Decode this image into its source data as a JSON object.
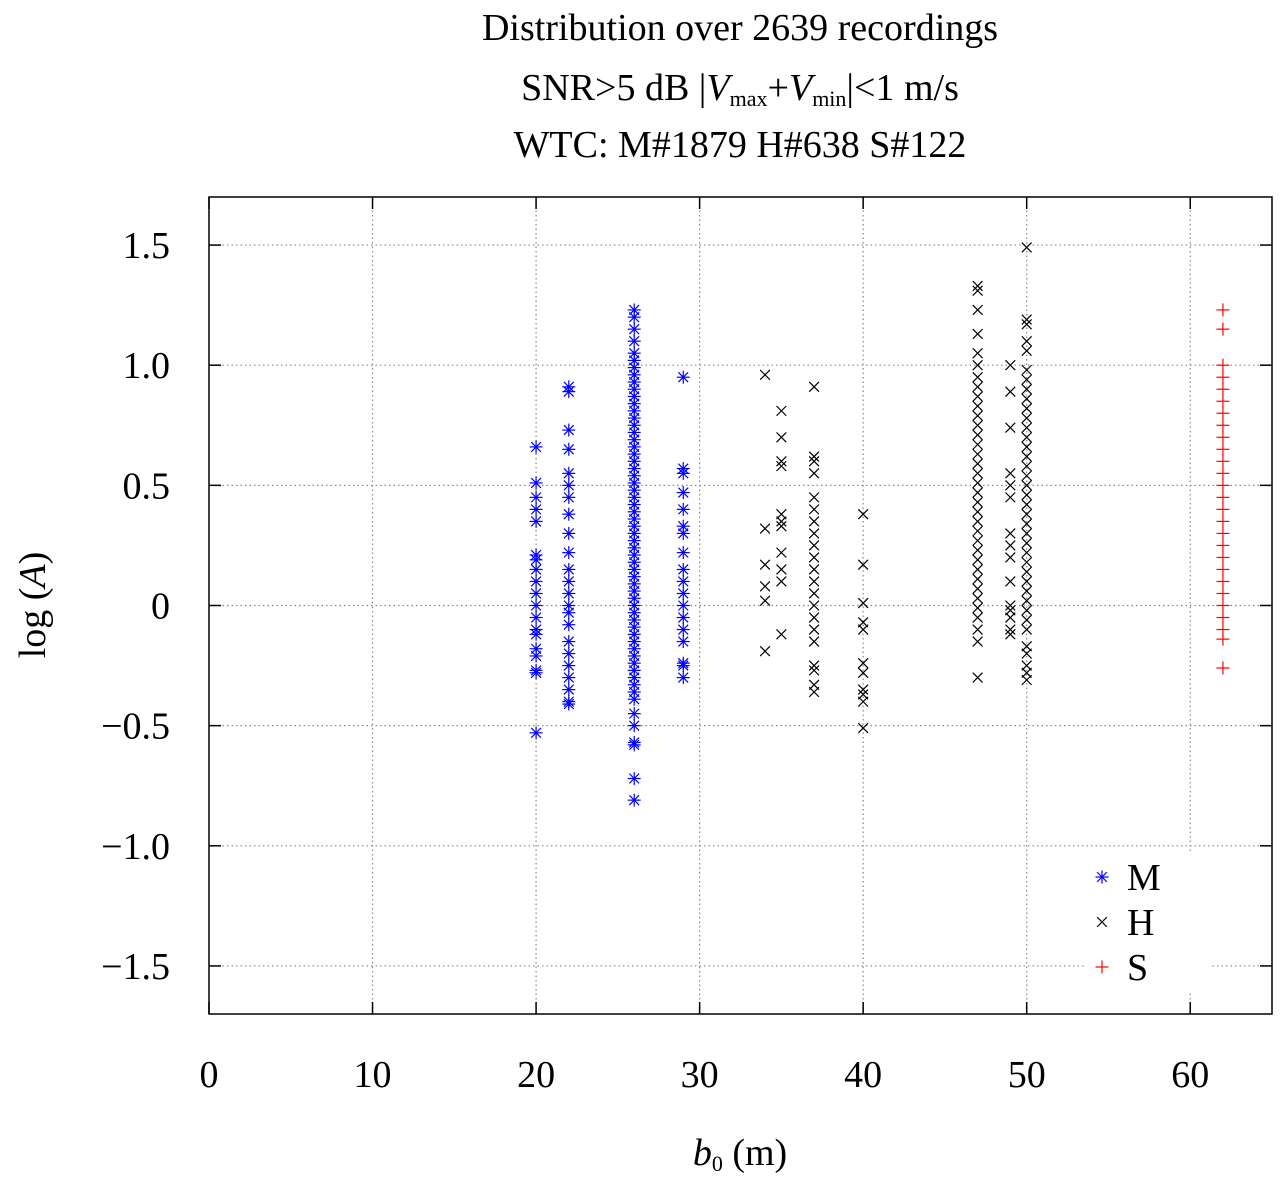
{
  "chart_data": {
    "type": "scatter",
    "title": {
      "line1": "Distribution over 2639 recordings",
      "line2_prefix": "SNR>5 dB  |",
      "line2_v": "V",
      "line2_max": "max",
      "line2_plus": "+",
      "line2_min": "min",
      "line2_suffix": "|<1 m/s",
      "line3": "WTC: M#1879  H#638  S#122"
    },
    "xlabel": {
      "var": "b",
      "sub": "0",
      "unit": " (m)"
    },
    "ylabel": {
      "fn": "log (",
      "var": "A",
      "close": ")"
    },
    "xlim": [
      0,
      65
    ],
    "ylim": [
      -1.7,
      1.7
    ],
    "xticks": [
      0,
      10,
      20,
      30,
      40,
      50,
      60
    ],
    "yticks": [
      -1.5,
      -1.0,
      -0.5,
      0,
      0.5,
      1.0,
      1.5
    ],
    "ytick_labels": [
      "−1.5",
      "−1.0",
      "−0.5",
      "0",
      "0.5",
      "1.0",
      "1.5"
    ],
    "grid": true,
    "legend_position": "bottom-right",
    "series": [
      {
        "name": "M",
        "marker": "star",
        "color": "#0000ff",
        "columns": [
          {
            "x": 20,
            "y": [
              0.66,
              0.51,
              0.45,
              0.4,
              0.35,
              0.21,
              0.19,
              0.15,
              0.1,
              0.05,
              0.0,
              -0.05,
              -0.1,
              -0.12,
              -0.18,
              -0.21,
              -0.27,
              -0.28,
              -0.53
            ]
          },
          {
            "x": 22,
            "y": [
              0.91,
              0.89,
              0.73,
              0.65,
              0.55,
              0.5,
              0.45,
              0.38,
              0.3,
              0.22,
              0.15,
              0.1,
              0.05,
              0.0,
              -0.03,
              -0.08,
              -0.15,
              -0.2,
              -0.25,
              -0.3,
              -0.35,
              -0.4,
              -0.41
            ]
          },
          {
            "x": 26,
            "y": [
              1.23,
              1.2,
              1.15,
              1.1,
              1.05,
              1.02,
              0.99,
              0.96,
              0.93,
              0.9,
              0.87,
              0.84,
              0.81,
              0.78,
              0.75,
              0.72,
              0.69,
              0.66,
              0.63,
              0.6,
              0.57,
              0.54,
              0.51,
              0.48,
              0.45,
              0.42,
              0.39,
              0.36,
              0.33,
              0.3,
              0.27,
              0.24,
              0.21,
              0.18,
              0.15,
              0.12,
              0.09,
              0.06,
              0.03,
              0.0,
              -0.03,
              -0.06,
              -0.09,
              -0.12,
              -0.15,
              -0.18,
              -0.21,
              -0.24,
              -0.27,
              -0.3,
              -0.33,
              -0.36,
              -0.39,
              -0.45,
              -0.5,
              -0.57,
              -0.58,
              -0.72,
              -0.81
            ]
          },
          {
            "x": 29,
            "y": [
              0.95,
              0.57,
              0.55,
              0.47,
              0.4,
              0.33,
              0.3,
              0.22,
              0.15,
              0.1,
              0.05,
              0.0,
              -0.05,
              -0.1,
              -0.15,
              -0.24,
              -0.25,
              -0.3
            ]
          }
        ]
      },
      {
        "name": "H",
        "marker": "cross",
        "color": "#000000",
        "columns": [
          {
            "x": 34,
            "y": [
              0.96,
              0.32,
              0.17,
              0.08,
              0.02,
              -0.19
            ]
          },
          {
            "x": 35,
            "y": [
              0.81,
              0.7,
              0.6,
              0.58,
              0.38,
              0.35,
              0.33,
              0.22,
              0.15,
              0.1,
              -0.12
            ]
          },
          {
            "x": 37,
            "y": [
              0.91,
              0.62,
              0.6,
              0.55,
              0.45,
              0.4,
              0.35,
              0.3,
              0.25,
              0.2,
              0.15,
              0.1,
              0.05,
              0.0,
              -0.05,
              -0.1,
              -0.15,
              -0.25,
              -0.27,
              -0.33,
              -0.36
            ]
          },
          {
            "x": 40,
            "y": [
              0.38,
              0.17,
              0.01,
              -0.07,
              -0.1,
              -0.24,
              -0.28,
              -0.35,
              -0.37,
              -0.4,
              -0.51
            ]
          },
          {
            "x": 47,
            "y": [
              1.33,
              1.31,
              1.23,
              1.13,
              1.05,
              1.0,
              0.95,
              0.91,
              0.87,
              0.83,
              0.79,
              0.75,
              0.71,
              0.67,
              0.63,
              0.59,
              0.55,
              0.51,
              0.47,
              0.43,
              0.39,
              0.35,
              0.31,
              0.27,
              0.23,
              0.19,
              0.15,
              0.11,
              0.07,
              0.03,
              -0.01,
              -0.05,
              -0.1,
              -0.15,
              -0.3
            ]
          },
          {
            "x": 49,
            "y": [
              1.0,
              0.89,
              0.74,
              0.55,
              0.5,
              0.45,
              0.3,
              0.25,
              0.2,
              0.1,
              0.0,
              -0.02,
              -0.05,
              -0.1,
              -0.12
            ]
          },
          {
            "x": 50,
            "y": [
              1.49,
              1.19,
              1.17,
              1.1,
              1.06,
              0.98,
              0.94,
              0.9,
              0.86,
              0.82,
              0.78,
              0.74,
              0.7,
              0.66,
              0.62,
              0.58,
              0.54,
              0.5,
              0.46,
              0.42,
              0.38,
              0.34,
              0.3,
              0.26,
              0.22,
              0.18,
              0.14,
              0.1,
              0.06,
              0.02,
              -0.02,
              -0.06,
              -0.1,
              -0.17,
              -0.2,
              -0.25,
              -0.28,
              -0.31
            ]
          }
        ]
      },
      {
        "name": "S",
        "marker": "plus",
        "color": "#ff0000",
        "columns": [
          {
            "x": 62,
            "y": [
              1.23,
              1.15,
              1.0,
              0.95,
              0.9,
              0.85,
              0.8,
              0.75,
              0.7,
              0.65,
              0.6,
              0.55,
              0.5,
              0.45,
              0.4,
              0.35,
              0.3,
              0.25,
              0.2,
              0.15,
              0.1,
              0.05,
              0.0,
              -0.05,
              -0.1,
              -0.14,
              -0.26
            ]
          }
        ]
      }
    ]
  }
}
